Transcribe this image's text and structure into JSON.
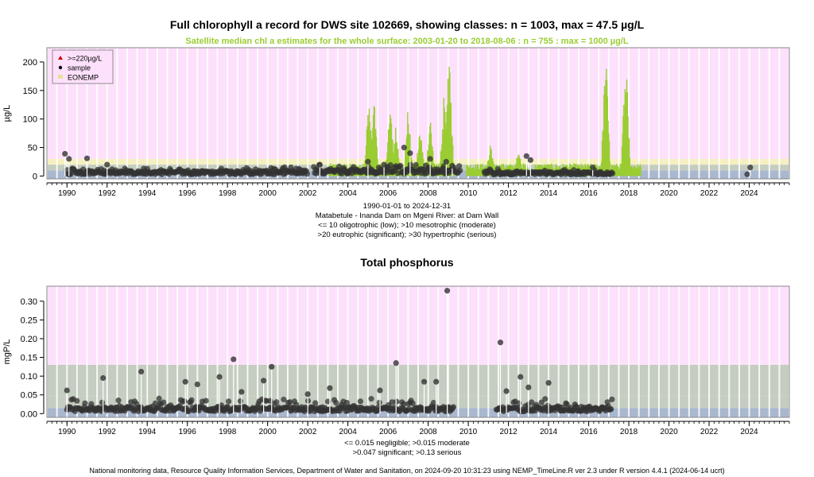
{
  "chart1": {
    "title": "Full chlorophyll a record for DWS site 102669, showing classes: n = 1003, max = 47.5 µg/L",
    "subtitle": "Satellite median chl a estimates for the whole surface: 2003-01-20 to 2018-08-06 : n = 755 : max = 1000 µg/L",
    "ylabel": "µg/L",
    "legend": [
      {
        "label": ">=220µg/L",
        "color": "#CC0000"
      },
      {
        "label": "sample",
        "color": "#000000"
      },
      {
        "label": "EONEMP",
        "color": "#E8E09A"
      }
    ],
    "info_lines": [
      "1990-01-01 to 2024-12-31",
      "Matabetule - Inanda Dam on Mgeni River: at Dam Wall",
      "<= 10 oligotrophic (low); >10 mesotrophic (moderate)",
      ">20 eutrophic (significant); >30 hypertrophic (serious)"
    ]
  },
  "chart2": {
    "title": "Total phosphorus",
    "ylabel": "mgP/L",
    "info_lines": [
      "<= 0.015 negligible; >0.015 moderate",
      ">0.047 significant; >0.13 serious"
    ]
  },
  "footer": "National monitoring data, Resource Quality Information Services, Department of Water and Sanitation, on 2024-09-20 10:31:23 using NEMP_TimeLine.R ver 2.3 under R version 4.4.1 (2024-06-14 ucrt)",
  "chart_data": [
    {
      "type": "scatter",
      "title": "Full chlorophyll a record for DWS site 102669, showing classes: n = 1003, max = 47.5 µg/L",
      "ylabel": "µg/L",
      "x_range": [
        1989,
        2026
      ],
      "ylim": [
        -5,
        225
      ],
      "x_ticks": [
        1990,
        1992,
        1994,
        1996,
        1998,
        2000,
        2002,
        2004,
        2006,
        2008,
        2010,
        2012,
        2014,
        2016,
        2018,
        2020,
        2022,
        2024
      ],
      "y_ticks": [
        0,
        50,
        100,
        150,
        200
      ],
      "class_bands": [
        {
          "from": 0,
          "to": 10,
          "color": "#A9B7CF",
          "label": "oligotrophic"
        },
        {
          "from": 10,
          "to": 20,
          "color": "#C4CDBF",
          "label": "mesotrophic"
        },
        {
          "from": 20,
          "to": 30,
          "color": "#F6F0C0",
          "label": "eutrophic"
        },
        {
          "from": 30,
          "to": 225,
          "color": "#FDE0FB",
          "label": "hypertrophic"
        }
      ],
      "sample_series": {
        "name": "sample",
        "ranges": [
          {
            "from": 1990.0,
            "to": 2002.0,
            "base": 6,
            "spread": 8
          },
          {
            "from": 2002.3,
            "to": 2009.6,
            "base": 8,
            "spread": 12
          },
          {
            "from": 2010.8,
            "to": 2017.2,
            "base": 5,
            "spread": 6
          }
        ],
        "peaks": [
          {
            "x": 1989.9,
            "y": 39
          },
          {
            "x": 1990.1,
            "y": 30
          },
          {
            "x": 1991.0,
            "y": 31
          },
          {
            "x": 1992.0,
            "y": 20
          },
          {
            "x": 2002.6,
            "y": 20
          },
          {
            "x": 2005.0,
            "y": 25
          },
          {
            "x": 2005.8,
            "y": 20
          },
          {
            "x": 2006.8,
            "y": 50
          },
          {
            "x": 2007.1,
            "y": 40
          },
          {
            "x": 2008.1,
            "y": 30
          },
          {
            "x": 2008.9,
            "y": 25
          },
          {
            "x": 2009.2,
            "y": 18
          },
          {
            "x": 2012.9,
            "y": 35
          },
          {
            "x": 2013.1,
            "y": 28
          },
          {
            "x": 2016.2,
            "y": 15
          },
          {
            "x": 2023.9,
            "y": 3
          },
          {
            "x": 2024.05,
            "y": 15
          }
        ]
      },
      "satellite_series": {
        "name": "satellite median",
        "color": "#9ACD32",
        "from": 2003.05,
        "to": 2018.6,
        "base": 10,
        "peaks": [
          {
            "x": 2005.05,
            "y": 158
          },
          {
            "x": 2005.3,
            "y": 140
          },
          {
            "x": 2006.1,
            "y": 137
          },
          {
            "x": 2006.4,
            "y": 95
          },
          {
            "x": 2007.0,
            "y": 125
          },
          {
            "x": 2007.6,
            "y": 95
          },
          {
            "x": 2008.1,
            "y": 110
          },
          {
            "x": 2008.8,
            "y": 150
          },
          {
            "x": 2009.05,
            "y": 225
          },
          {
            "x": 2011.1,
            "y": 60
          },
          {
            "x": 2012.5,
            "y": 50
          },
          {
            "x": 2016.85,
            "y": 228
          },
          {
            "x": 2017.85,
            "y": 230
          }
        ]
      }
    },
    {
      "type": "scatter",
      "title": "Total phosphorus",
      "ylabel": "mgP/L",
      "x_range": [
        1989,
        2026
      ],
      "ylim": [
        -0.01,
        0.34
      ],
      "x_ticks": [
        1990,
        1992,
        1994,
        1996,
        1998,
        2000,
        2002,
        2004,
        2006,
        2008,
        2010,
        2012,
        2014,
        2016,
        2018,
        2020,
        2022,
        2024
      ],
      "y_ticks": [
        0.0,
        0.05,
        0.1,
        0.15,
        0.2,
        0.25,
        0.3
      ],
      "class_bands": [
        {
          "from": 0,
          "to": 0.015,
          "color": "#A9B7CF",
          "label": "negligible"
        },
        {
          "from": 0.015,
          "to": 0.047,
          "color": "#C4CDBF",
          "label": "moderate"
        },
        {
          "from": 0.047,
          "to": 0.13,
          "color": "#C4CDBF",
          "label": "significant"
        },
        {
          "from": 0.13,
          "to": 0.34,
          "color": "#FDE0FB",
          "label": "serious"
        }
      ],
      "sample_series": {
        "name": "sample",
        "ranges": [
          {
            "from": 1990.0,
            "to": 2009.3,
            "base": 0.012,
            "spread": 0.025
          },
          {
            "from": 2011.4,
            "to": 2017.2,
            "base": 0.012,
            "spread": 0.025
          }
        ],
        "peaks": [
          {
            "x": 1990.0,
            "y": 0.062
          },
          {
            "x": 1991.8,
            "y": 0.095
          },
          {
            "x": 1993.7,
            "y": 0.112
          },
          {
            "x": 1995.9,
            "y": 0.085
          },
          {
            "x": 1996.5,
            "y": 0.078
          },
          {
            "x": 1997.6,
            "y": 0.098
          },
          {
            "x": 1998.3,
            "y": 0.145
          },
          {
            "x": 1998.7,
            "y": 0.058
          },
          {
            "x": 1999.8,
            "y": 0.088
          },
          {
            "x": 2000.2,
            "y": 0.125
          },
          {
            "x": 2002.0,
            "y": 0.052
          },
          {
            "x": 2003.1,
            "y": 0.068
          },
          {
            "x": 2005.6,
            "y": 0.062
          },
          {
            "x": 2006.4,
            "y": 0.135
          },
          {
            "x": 2007.8,
            "y": 0.085
          },
          {
            "x": 2008.4,
            "y": 0.085
          },
          {
            "x": 2008.95,
            "y": 0.328
          },
          {
            "x": 2011.6,
            "y": 0.19
          },
          {
            "x": 2011.9,
            "y": 0.06
          },
          {
            "x": 2012.6,
            "y": 0.098
          },
          {
            "x": 2013.0,
            "y": 0.07
          },
          {
            "x": 2014.0,
            "y": 0.082
          }
        ]
      }
    }
  ]
}
